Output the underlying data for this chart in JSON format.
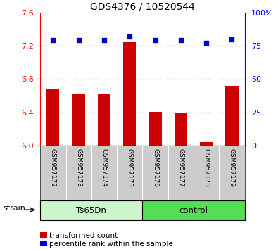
{
  "title": "GDS4376 / 10520544",
  "samples": [
    "GSM957172",
    "GSM957173",
    "GSM957174",
    "GSM957175",
    "GSM957176",
    "GSM957177",
    "GSM957178",
    "GSM957179"
  ],
  "red_values": [
    6.68,
    6.62,
    6.62,
    7.24,
    6.41,
    6.4,
    6.04,
    6.72
  ],
  "blue_values": [
    79,
    79,
    79,
    82,
    79,
    79,
    77,
    80
  ],
  "ylim_left": [
    6.0,
    7.6
  ],
  "ylim_right": [
    0,
    100
  ],
  "yticks_left": [
    6.0,
    6.4,
    6.8,
    7.2,
    7.6
  ],
  "yticks_right": [
    0,
    25,
    50,
    75,
    100
  ],
  "bar_color": "#cc0000",
  "dot_color": "#0000cc",
  "group1_color": "#ccf5cc",
  "group2_color": "#55dd55",
  "sample_bg_color": "#cccccc",
  "group_label": "strain",
  "group1_label": "Ts65Dn",
  "group2_label": "control",
  "legend_red_label": "transformed count",
  "legend_blue_label": "percentile rank within the sample",
  "grid_yticks": [
    6.4,
    6.8,
    7.2
  ],
  "right_tick_labels": [
    "0",
    "25",
    "50",
    "75",
    "100%"
  ]
}
